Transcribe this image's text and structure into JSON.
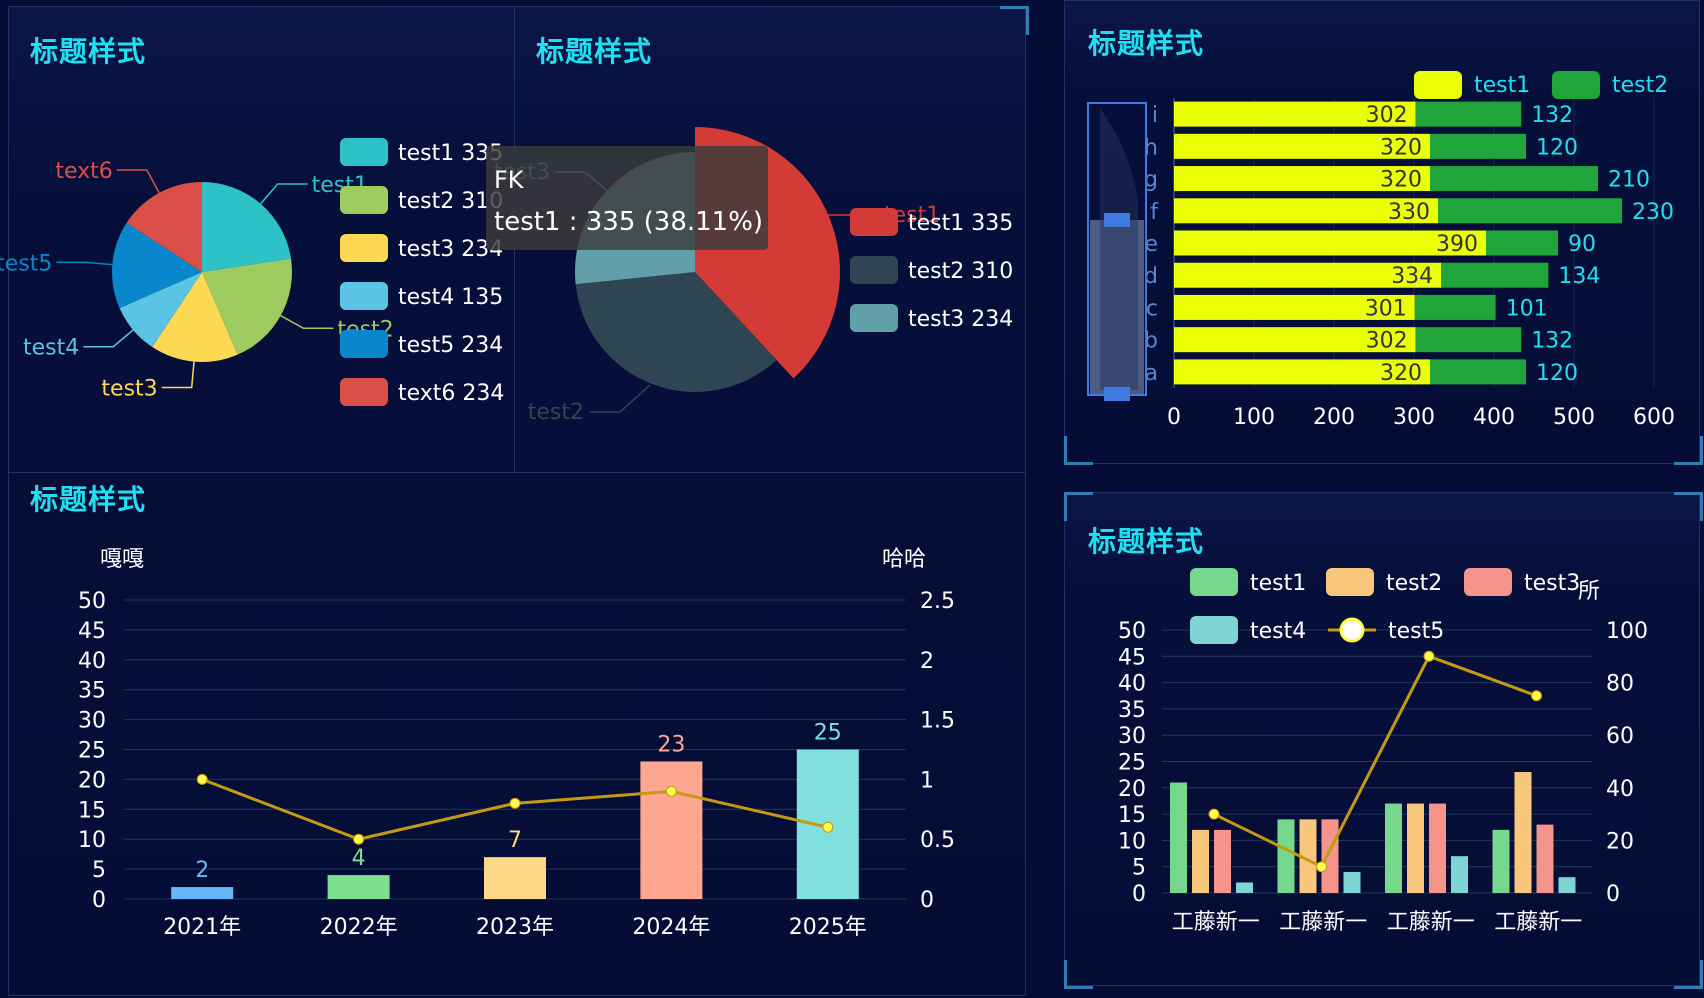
{
  "panels": {
    "pie_title": "标题样式",
    "pie2_title": "标题样式",
    "bar_title": "标题样式",
    "hbar_title": "标题样式",
    "group_title": "标题样式"
  },
  "colors": {
    "title": "#1fe0f2",
    "background": "#050d36"
  },
  "chart_data": [
    {
      "id": "pie1",
      "type": "pie",
      "title": "",
      "legend_position": "right",
      "slices": [
        {
          "name": "test1",
          "value": 335,
          "color": "#2cc2c8",
          "legend": "test1 335"
        },
        {
          "name": "test2",
          "value": 310,
          "color": "#9dcb60",
          "legend": "test2 310"
        },
        {
          "name": "test3",
          "value": 234,
          "color": "#fcd853",
          "legend": "test3 234"
        },
        {
          "name": "test4",
          "value": 135,
          "color": "#5bc3e3",
          "legend": "test4 135"
        },
        {
          "name": "test5",
          "value": 234,
          "color": "#0a86cc",
          "legend": "test5 234"
        },
        {
          "name": "text6",
          "value": 234,
          "color": "#da5048",
          "legend": "text6 234"
        }
      ]
    },
    {
      "id": "pie2",
      "type": "pie",
      "title": "",
      "legend_position": "right",
      "slices": [
        {
          "name": "test1",
          "value": 335,
          "color": "#d43b36",
          "legend": "test1 335"
        },
        {
          "name": "test2",
          "value": 310,
          "color": "#2f4554",
          "legend": "test2 310"
        },
        {
          "name": "test3",
          "value": 234,
          "color": "#61a0a8",
          "legend": "test3 234"
        }
      ],
      "tooltip": {
        "title": "FK",
        "line": "test1 : 335 (38.11%)"
      }
    },
    {
      "id": "bar1",
      "type": "bar",
      "title": "",
      "categories": [
        "2021年",
        "2022年",
        "2023年",
        "2024年",
        "2025年"
      ],
      "values": [
        2,
        4,
        7,
        23,
        25
      ],
      "bar_colors": [
        "#66b7f8",
        "#7de08f",
        "#fdd886",
        "#fea690",
        "#7fe0dd"
      ],
      "line_values": [
        1,
        0.5,
        0.8,
        0.9,
        0.6
      ],
      "ylabel_left": "嘎嘎",
      "ylabel_right": "哈哈",
      "ylim_left": [
        0,
        50
      ],
      "ylim_right": [
        0,
        2.5
      ],
      "yticks_left": [
        "0",
        "5",
        "10",
        "15",
        "20",
        "25",
        "30",
        "35",
        "40",
        "45",
        "50"
      ],
      "yticks_right": [
        "0",
        "0.5",
        "1",
        "1.5",
        "2",
        "2.5"
      ],
      "grid": true
    },
    {
      "id": "hbar1",
      "type": "bar",
      "orientation": "horizontal",
      "stacked": true,
      "title": "",
      "categories": [
        "a",
        "b",
        "c",
        "d",
        "e",
        "f",
        "g",
        "h",
        "i"
      ],
      "series": [
        {
          "name": "test1",
          "values": [
            320,
            302,
            301,
            334,
            390,
            330,
            320,
            320,
            302
          ],
          "color": "#eaff05"
        },
        {
          "name": "test2",
          "values": [
            120,
            132,
            101,
            134,
            90,
            230,
            210,
            120,
            132
          ],
          "color": "#1fa539"
        }
      ],
      "xlim": [
        0,
        600
      ],
      "xticks": [
        "0",
        "100",
        "200",
        "300",
        "400",
        "500",
        "600"
      ],
      "legend_position": "top-right",
      "datazoom": true
    },
    {
      "id": "group1",
      "type": "bar",
      "title": "",
      "categories": [
        "工藤新一",
        "工藤新一",
        "工藤新一",
        "工藤新一"
      ],
      "series": [
        {
          "name": "test1",
          "values": [
            21,
            14,
            17,
            12
          ],
          "color": "#75d88c"
        },
        {
          "name": "test2",
          "values": [
            12,
            14,
            17,
            23
          ],
          "color": "#f9c77b"
        },
        {
          "name": "test3",
          "values": [
            12,
            14,
            17,
            13
          ],
          "color": "#f4948a"
        },
        {
          "name": "test4",
          "values": [
            2,
            4,
            7,
            3
          ],
          "color": "#7fd4d4"
        }
      ],
      "line_series": {
        "name": "test5",
        "values": [
          30,
          10,
          90,
          75
        ],
        "color": "#c59a13"
      },
      "ylim_left": [
        0,
        50
      ],
      "ylim_right": [
        0,
        100
      ],
      "yticks_left": [
        "0",
        "5",
        "10",
        "15",
        "20",
        "25",
        "30",
        "35",
        "40",
        "45",
        "50"
      ],
      "yticks_right": [
        "0",
        "20",
        "40",
        "60",
        "80",
        "100"
      ],
      "right_label": "所",
      "legend_position": "top"
    }
  ]
}
